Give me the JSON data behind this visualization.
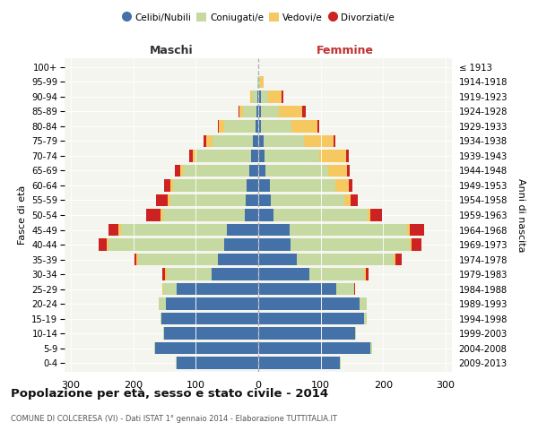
{
  "age_groups": [
    "0-4",
    "5-9",
    "10-14",
    "15-19",
    "20-24",
    "25-29",
    "30-34",
    "35-39",
    "40-44",
    "45-49",
    "50-54",
    "55-59",
    "60-64",
    "65-69",
    "70-74",
    "75-79",
    "80-84",
    "85-89",
    "90-94",
    "95-99",
    "100+"
  ],
  "birth_years": [
    "2009-2013",
    "2004-2008",
    "1999-2003",
    "1994-1998",
    "1989-1993",
    "1984-1988",
    "1979-1983",
    "1974-1978",
    "1969-1973",
    "1964-1968",
    "1959-1963",
    "1954-1958",
    "1949-1953",
    "1944-1948",
    "1939-1943",
    "1934-1938",
    "1929-1933",
    "1924-1928",
    "1919-1923",
    "1914-1918",
    "≤ 1913"
  ],
  "males": {
    "celibi": [
      130,
      165,
      150,
      155,
      148,
      130,
      75,
      65,
      55,
      50,
      22,
      20,
      18,
      15,
      12,
      8,
      5,
      3,
      2,
      0,
      0
    ],
    "coniugati": [
      2,
      2,
      2,
      2,
      12,
      22,
      72,
      128,
      185,
      170,
      130,
      120,
      118,
      105,
      88,
      65,
      50,
      22,
      8,
      2,
      0
    ],
    "vedovi": [
      0,
      0,
      0,
      0,
      0,
      2,
      2,
      2,
      3,
      4,
      5,
      5,
      5,
      5,
      5,
      10,
      8,
      5,
      3,
      0,
      0
    ],
    "divorziati": [
      0,
      0,
      0,
      0,
      0,
      0,
      5,
      5,
      12,
      15,
      22,
      18,
      10,
      8,
      5,
      5,
      2,
      2,
      0,
      0,
      0
    ]
  },
  "females": {
    "nubili": [
      130,
      180,
      155,
      170,
      162,
      125,
      82,
      62,
      52,
      50,
      25,
      20,
      18,
      12,
      10,
      8,
      5,
      5,
      4,
      1,
      0
    ],
    "coniugate": [
      2,
      2,
      2,
      3,
      12,
      28,
      88,
      155,
      190,
      188,
      150,
      118,
      105,
      100,
      88,
      65,
      48,
      28,
      12,
      2,
      0
    ],
    "vedove": [
      0,
      0,
      0,
      0,
      0,
      0,
      2,
      2,
      3,
      5,
      5,
      10,
      22,
      30,
      42,
      48,
      42,
      38,
      22,
      5,
      0
    ],
    "divorziate": [
      0,
      0,
      0,
      0,
      0,
      2,
      5,
      10,
      16,
      22,
      18,
      12,
      5,
      5,
      5,
      2,
      2,
      5,
      2,
      0,
      0
    ]
  },
  "colors": {
    "celibi": "#4472a8",
    "coniugati": "#c5d9a0",
    "vedovi": "#f5c860",
    "divorziati": "#cc2222"
  },
  "xlim": 310,
  "title": "Popolazione per età, sesso e stato civile - 2014",
  "subtitle": "COMUNE DI COLCERESA (VI) - Dati ISTAT 1° gennaio 2014 - Elaborazione TUTTITALIA.IT",
  "ylabel_left": "Fasce di età",
  "ylabel_right": "Anni di nascita",
  "xlabel_left": "Maschi",
  "xlabel_right": "Femmine",
  "bg_color": "#f5f5f0"
}
